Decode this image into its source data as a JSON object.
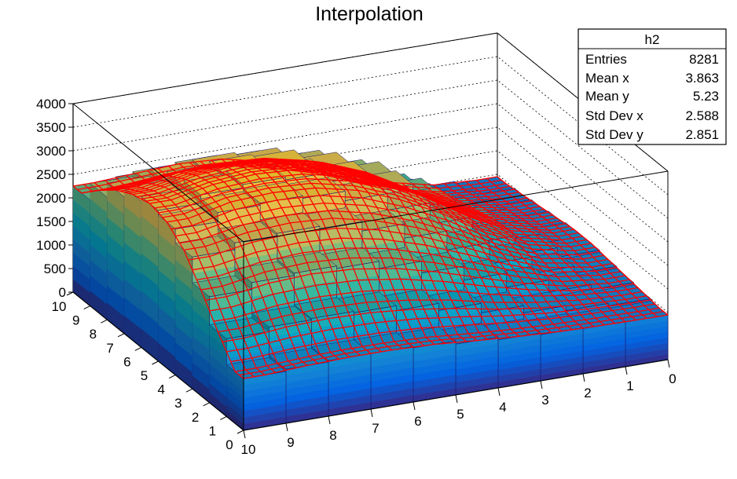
{
  "title": "Interpolation",
  "chart_data": {
    "type": "lego3d_with_surface",
    "title": "Interpolation",
    "x_axis": {
      "range": [
        0,
        10
      ],
      "ticks": [
        0,
        1,
        2,
        3,
        4,
        5,
        6,
        7,
        8,
        9,
        10
      ]
    },
    "y_axis": {
      "range": [
        0,
        10
      ],
      "ticks": [
        0,
        1,
        2,
        3,
        4,
        5,
        6,
        7,
        8,
        9,
        10
      ]
    },
    "z_axis": {
      "range": [
        0,
        4000
      ],
      "ticks": [
        0,
        500,
        1000,
        1500,
        2000,
        2500,
        3000,
        3500,
        4000
      ]
    },
    "bins_per_axis": 10,
    "z_values": [
      [
        950,
        960,
        980,
        1020,
        1080,
        1150,
        1180,
        1180,
        1150,
        1100
      ],
      [
        1000,
        1050,
        1150,
        1300,
        1500,
        1650,
        1750,
        1780,
        1750,
        1650
      ],
      [
        1050,
        1150,
        1400,
        1700,
        2000,
        2250,
        2400,
        2450,
        2400,
        2250
      ],
      [
        1100,
        1250,
        1600,
        2050,
        2450,
        2750,
        2950,
        3000,
        2950,
        2800
      ],
      [
        1150,
        1350,
        1750,
        2300,
        2750,
        3100,
        3300,
        3350,
        3300,
        3100
      ],
      [
        1150,
        1350,
        1800,
        2350,
        2850,
        3200,
        3400,
        3450,
        3380,
        3200
      ],
      [
        1100,
        1300,
        1700,
        2250,
        2750,
        3100,
        3300,
        3350,
        3280,
        3100
      ],
      [
        1050,
        1200,
        1550,
        2050,
        2500,
        2850,
        3050,
        3100,
        3050,
        2900
      ],
      [
        1000,
        1100,
        1400,
        1800,
        2200,
        2500,
        2700,
        2750,
        2700,
        2600
      ],
      [
        950,
        1000,
        1200,
        1500,
        1850,
        2100,
        2300,
        2350,
        2300,
        2250
      ]
    ],
    "surface_color": "#ff0000",
    "grid_color": "#00008b",
    "grid": true
  },
  "stats": {
    "name": "h2",
    "rows": [
      {
        "label": "Entries",
        "value": "8281"
      },
      {
        "label": "Mean x",
        "value": "3.863"
      },
      {
        "label": "Mean y",
        "value": "5.23"
      },
      {
        "label": "Std Dev x",
        "value": "2.588"
      },
      {
        "label": "Std Dev y",
        "value": "2.851"
      }
    ]
  }
}
